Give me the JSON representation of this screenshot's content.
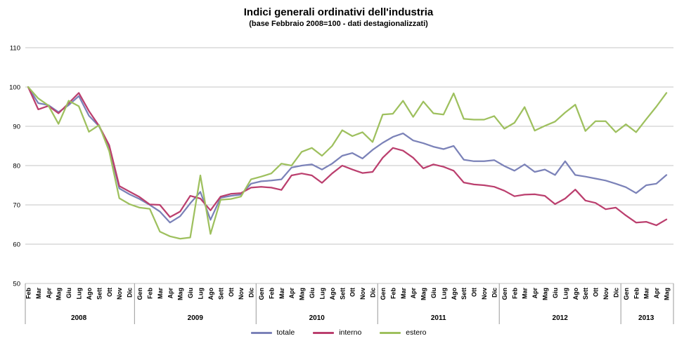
{
  "header": {
    "title": "Indici generali ordinativi dell'industria",
    "subtitle": "(base Febbraio 2008=100 - dati destagionalizzati)"
  },
  "chart_data": {
    "type": "line",
    "title": "Indici generali ordinativi dell'industria",
    "subtitle": "(base Febbraio 2008=100 - dati destagionalizzati)",
    "ylim": [
      50,
      110
    ],
    "yticks": [
      50,
      60,
      70,
      80,
      90,
      100,
      110
    ],
    "grid": true,
    "legend_position": "bottom",
    "grid_color": "#c6c6c6",
    "separator_color": "#999999",
    "x_groups": [
      {
        "year": "2008",
        "months": [
          "Feb",
          "Mar",
          "Apr",
          "Mag",
          "Giu",
          "Lug",
          "Ago",
          "Sett",
          "Ott",
          "Nov",
          "Dic"
        ]
      },
      {
        "year": "2009",
        "months": [
          "Gen",
          "Feb",
          "Mar",
          "Apr",
          "Mag",
          "Giu",
          "Lug",
          "Ago",
          "Sett",
          "Ott",
          "Nov",
          "Dic"
        ]
      },
      {
        "year": "2010",
        "months": [
          "Gen",
          "Feb",
          "Mar",
          "Apr",
          "Mag",
          "Giu",
          "Lug",
          "Ago",
          "Sett",
          "Ott",
          "Nov",
          "Dic"
        ]
      },
      {
        "year": "2011",
        "months": [
          "Gen",
          "Feb",
          "Mar",
          "Apr",
          "Mag",
          "Giu",
          "Lug",
          "Ago",
          "Sett",
          "Ott",
          "Nov",
          "Dic"
        ]
      },
      {
        "year": "2012",
        "months": [
          "Gen",
          "Feb",
          "Mar",
          "Apr",
          "Mag",
          "Giu",
          "Lug",
          "Ago",
          "Sett",
          "Ott",
          "Nov",
          "Dic"
        ]
      },
      {
        "year": "2013",
        "months": [
          "Gen",
          "Feb",
          "Mar",
          "Apr",
          "Mag"
        ]
      }
    ],
    "series": [
      {
        "name": "totale",
        "color": "#7B82B8",
        "values": [
          100,
          95.9,
          95.4,
          93.6,
          95.4,
          97.7,
          92.7,
          90,
          84.6,
          74.2,
          72.7,
          71.5,
          70,
          68.3,
          65.5,
          67.1,
          70.4,
          73.3,
          66.2,
          71.8,
          72.3,
          72.6,
          75.4,
          76,
          76.2,
          76.5,
          79.5,
          80,
          80.3,
          79,
          80.5,
          82.5,
          83.2,
          81.8,
          84,
          85.8,
          87.3,
          88.2,
          86.4,
          85.7,
          84.8,
          84.2,
          85,
          81.5,
          81.1,
          81.1,
          81.4,
          79.9,
          78.7,
          80.3,
          78.4,
          79,
          77.6,
          81.1,
          77.6,
          77.2,
          76.7,
          76.2,
          75.4,
          74.5,
          73,
          75,
          75.4,
          77.6
        ]
      },
      {
        "name": "interno",
        "color": "#BB3F6E",
        "values": [
          100,
          94.3,
          95.2,
          93.3,
          95.9,
          98.5,
          93.9,
          90.1,
          85.2,
          74.8,
          73.4,
          72,
          70.1,
          70,
          66.9,
          68.3,
          72.3,
          71.6,
          68.6,
          72.1,
          72.8,
          73,
          74.4,
          74.6,
          74.4,
          73.8,
          77.5,
          78,
          77.5,
          75.6,
          78,
          80,
          79,
          78.1,
          78.4,
          82,
          84.5,
          83.8,
          82,
          79.3,
          80.3,
          79.7,
          78.7,
          75.7,
          75.2,
          75,
          74.6,
          73.6,
          72.2,
          72.6,
          72.7,
          72.3,
          70.2,
          71.6,
          73.9,
          71.1,
          70.5,
          68.9,
          69.3,
          67.3,
          65.5,
          65.7,
          64.8,
          66.3
        ]
      },
      {
        "name": "estero",
        "color": "#9EC05E",
        "values": [
          100,
          97.1,
          95.3,
          90.6,
          96.5,
          95.1,
          88.6,
          90.3,
          83.7,
          71.7,
          70.2,
          69.3,
          69,
          63.2,
          62,
          61.4,
          61.7,
          77.5,
          62.6,
          71.3,
          71.5,
          72.1,
          76.5,
          77.2,
          78,
          80.5,
          80,
          83.5,
          84.5,
          82.5,
          85,
          89,
          87.5,
          88.5,
          86,
          93,
          93.2,
          96.5,
          92.4,
          96.3,
          93.3,
          93,
          98.4,
          91.9,
          91.7,
          91.7,
          92.6,
          89.4,
          90.9,
          94.9,
          88.9,
          90.1,
          91.2,
          93.5,
          95.5,
          88.8,
          91.3,
          91.3,
          88.5,
          90.5,
          88.5,
          91.8,
          95,
          98.5
        ]
      }
    ]
  }
}
